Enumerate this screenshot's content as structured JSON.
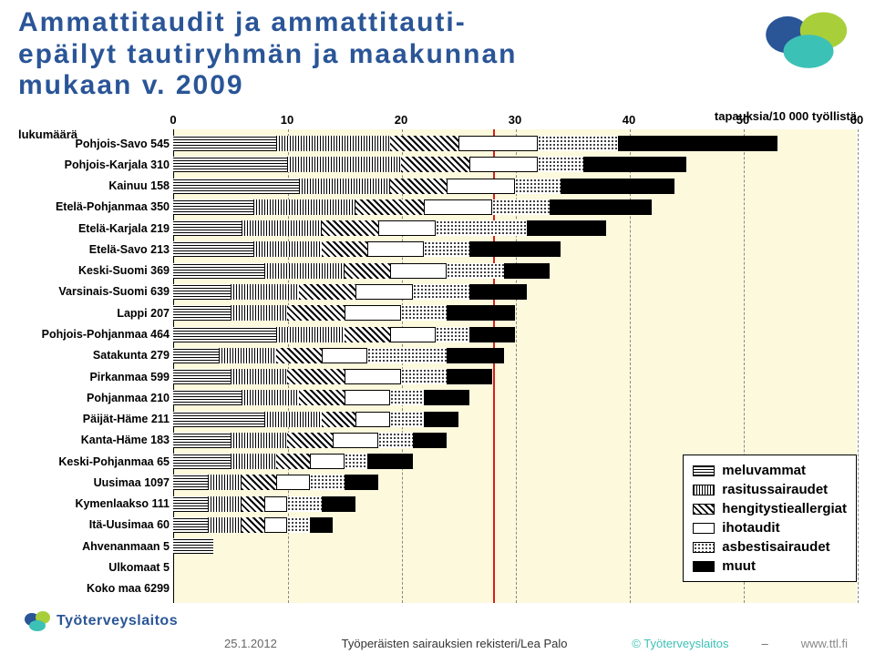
{
  "title_lines": [
    "Ammattitaudit ja ammattitauti-",
    "epäilyt tautiryhmän ja maakunnan",
    "mukaan v. 2009"
  ],
  "axis": {
    "title": "tapauksia/10 000 työllistä",
    "lukumaara_label": "lukumäärä",
    "xmin": 0,
    "xmax": 60,
    "ticks": [
      0,
      10,
      20,
      30,
      40,
      50,
      60
    ],
    "reference_line": 28,
    "plot_bg": "#fdf9dd",
    "grid_color": "#888888",
    "ref_color": "#d62020"
  },
  "segments_order": [
    "meluvammat",
    "rasitussairaudet",
    "hengitystieallergiat",
    "ihotaudit",
    "asbestisairaudet",
    "muut"
  ],
  "segment_patterns": {
    "meluvammat": "p-hstripe",
    "rasitussairaudet": "p-vstripe",
    "hengitystieallergiat": "p-diag",
    "ihotaudit": "p-white",
    "asbestisairaudet": "p-dots",
    "muut": "p-black"
  },
  "legend": {
    "items": [
      {
        "label": "meluvammat",
        "pattern": "p-hstripe"
      },
      {
        "label": "rasitussairaudet",
        "pattern": "p-vstripe"
      },
      {
        "label": "hengitystieallergiat",
        "pattern": "p-diag"
      },
      {
        "label": "ihotaudit",
        "pattern": "p-white"
      },
      {
        "label": "asbestisairaudet",
        "pattern": "p-dots"
      },
      {
        "label": "muut",
        "pattern": "p-black"
      }
    ]
  },
  "rows": [
    {
      "label": "Pohjois-Savo 545",
      "segs": [
        9,
        10,
        6,
        7,
        7,
        14
      ]
    },
    {
      "label": "Pohjois-Karjala 310",
      "segs": [
        10,
        10,
        6,
        6,
        4,
        9
      ]
    },
    {
      "label": "Kainuu 158",
      "segs": [
        11,
        8,
        5,
        6,
        4,
        10
      ]
    },
    {
      "label": "Etelä-Pohjanmaa 350",
      "segs": [
        7,
        9,
        6,
        6,
        5,
        9
      ]
    },
    {
      "label": "Etelä-Karjala 219",
      "segs": [
        6,
        7,
        5,
        5,
        8,
        7
      ]
    },
    {
      "label": "Etelä-Savo 213",
      "segs": [
        7,
        6,
        4,
        5,
        4,
        8
      ]
    },
    {
      "label": "Keski-Suomi 369",
      "segs": [
        8,
        7,
        4,
        5,
        5,
        4
      ]
    },
    {
      "label": "Varsinais-Suomi 639",
      "segs": [
        5,
        6,
        5,
        5,
        5,
        5
      ]
    },
    {
      "label": "Lappi 207",
      "segs": [
        5,
        5,
        5,
        5,
        4,
        6
      ]
    },
    {
      "label": "Pohjois-Pohjanmaa 464",
      "segs": [
        9,
        6,
        4,
        4,
        3,
        4
      ]
    },
    {
      "label": "Satakunta 279",
      "segs": [
        4,
        5,
        4,
        4,
        7,
        5
      ]
    },
    {
      "label": "Pirkanmaa 599",
      "segs": [
        5,
        5,
        5,
        5,
        4,
        4
      ]
    },
    {
      "label": "Pohjanmaa  210",
      "segs": [
        6,
        5,
        4,
        4,
        3,
        4
      ]
    },
    {
      "label": "Päijät-Häme 211",
      "segs": [
        8,
        5,
        3,
        3,
        3,
        3
      ]
    },
    {
      "label": "Kanta-Häme 183",
      "segs": [
        5,
        5,
        4,
        4,
        3,
        3
      ]
    },
    {
      "label": "Keski-Pohjanmaa 65",
      "segs": [
        5,
        4,
        3,
        3,
        2,
        4
      ]
    },
    {
      "label": "Uusimaa 1097",
      "segs": [
        3,
        3,
        3,
        3,
        3,
        3
      ]
    },
    {
      "label": "Kymenlaakso 111",
      "segs": [
        3,
        3,
        2,
        2,
        3,
        3
      ]
    },
    {
      "label": "Itä-Uusimaa 60",
      "segs": [
        3,
        3,
        2,
        2,
        2,
        2
      ]
    },
    {
      "label": "Ahvenanmaan 5",
      "segs": [
        3.5,
        0,
        0,
        0,
        0,
        0
      ]
    },
    {
      "label": "Ulkomaat 5",
      "segs": [
        0,
        0,
        0,
        0,
        0,
        0
      ]
    },
    {
      "label": "Koko maa 6299",
      "segs": [
        0,
        0,
        0,
        0,
        0,
        0
      ]
    }
  ],
  "footer": {
    "date": "25.1.2012",
    "center": "Työperäisten sairauksien rekisteri/Lea Palo",
    "right1": "© Työterveyslaitos",
    "right2": "–",
    "right3": "www.ttl.fi",
    "logo_text": "Työterveyslaitos"
  },
  "colors": {
    "title": "#2a5597",
    "footer_text": "#666666"
  }
}
